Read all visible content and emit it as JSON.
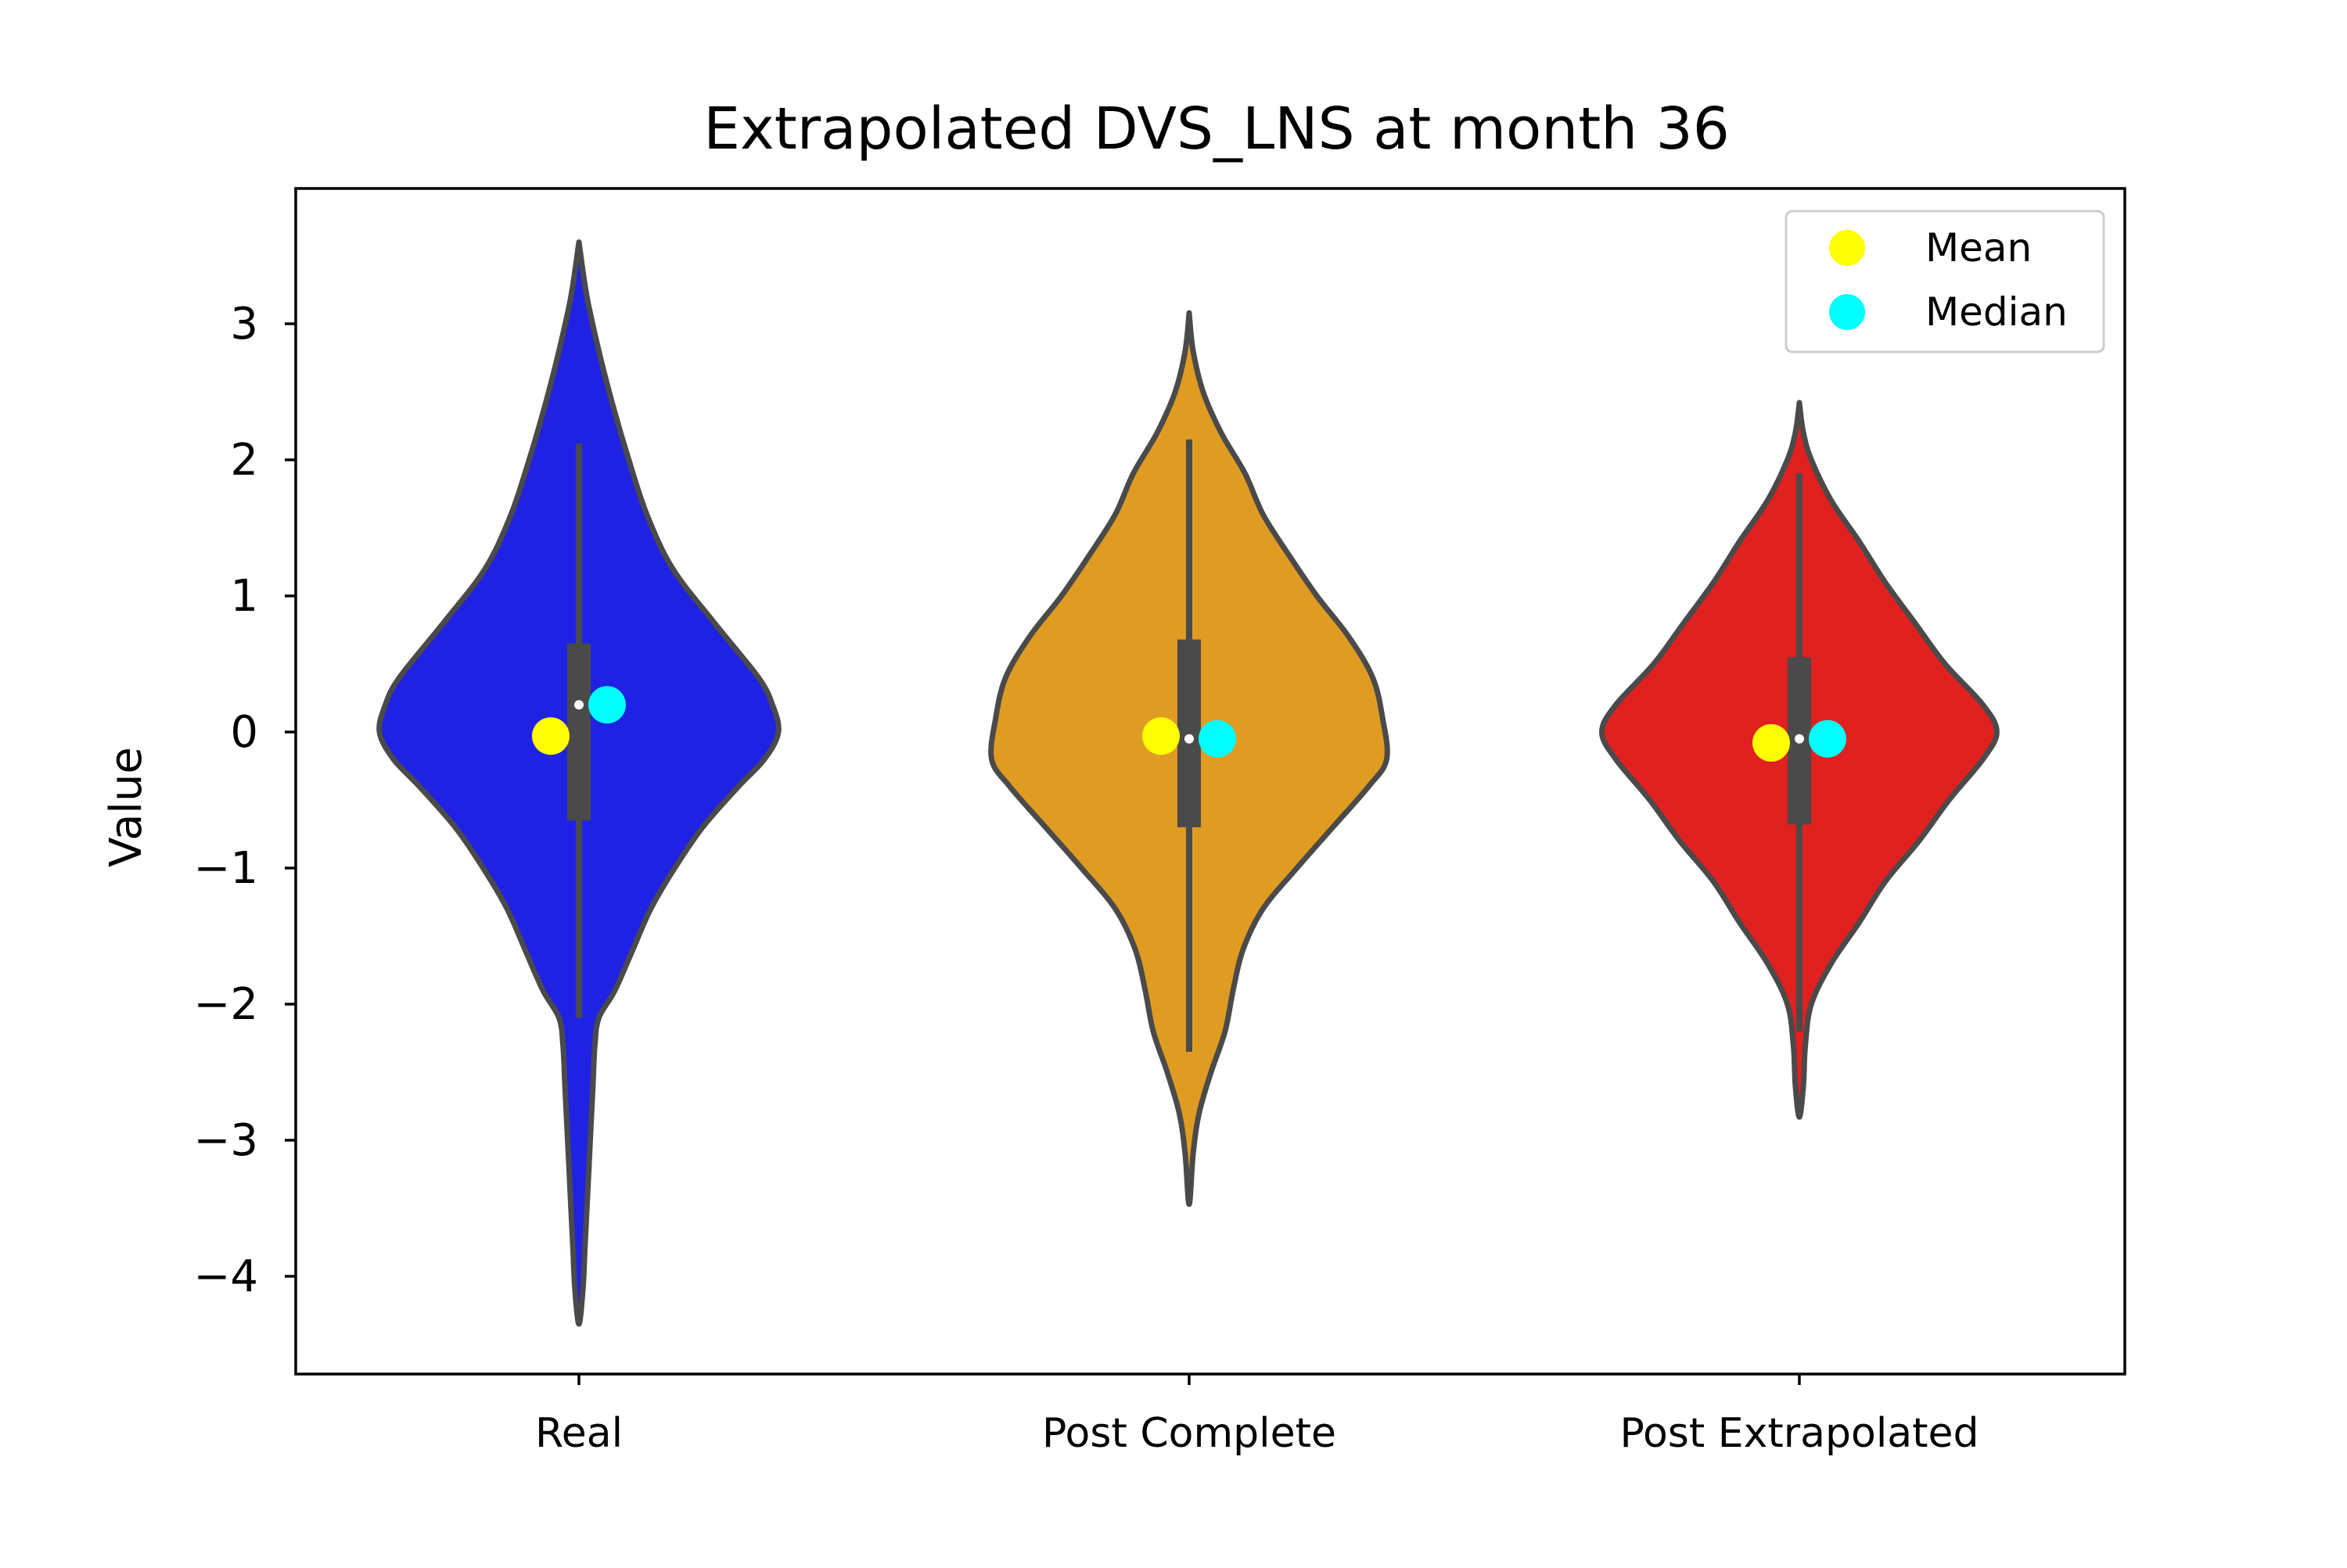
{
  "chart_data": {
    "type": "violin",
    "title": "Extrapolated DVS_LNS at month 36",
    "xlabel": "",
    "ylabel": "Value",
    "ylim": [
      -4.8,
      4.0
    ],
    "yticks": [
      {
        "value": 3,
        "label": "3"
      },
      {
        "value": 2,
        "label": "2"
      },
      {
        "value": 1,
        "label": "1"
      },
      {
        "value": 0,
        "label": "0"
      },
      {
        "value": -1,
        "label": "−1"
      },
      {
        "value": -2,
        "label": "−2"
      },
      {
        "value": -3,
        "label": "−3"
      },
      {
        "value": -4,
        "label": "−4"
      }
    ],
    "grid": false,
    "legend": {
      "placement": "top-right",
      "entries": [
        {
          "label": "Mean",
          "color": "#ffff00"
        },
        {
          "label": "Median",
          "color": "#00ffff"
        }
      ]
    },
    "categories": [
      "Real",
      "Post Complete",
      "Post Extrapolated"
    ],
    "series": [
      {
        "category": "Real",
        "color": "#1f22e3",
        "mean": -0.03,
        "median": 0.2,
        "box": {
          "q1": -0.65,
          "q3": 0.65,
          "whisker_low": -2.1,
          "whisker_high": 2.12
        },
        "profile": [
          [
            3.6,
            0.0
          ],
          [
            3.2,
            0.04
          ],
          [
            2.8,
            0.1
          ],
          [
            2.4,
            0.17
          ],
          [
            2.0,
            0.25
          ],
          [
            1.6,
            0.34
          ],
          [
            1.2,
            0.47
          ],
          [
            0.8,
            0.68
          ],
          [
            0.4,
            0.9
          ],
          [
            0.2,
            0.97
          ],
          [
            0.0,
            1.0
          ],
          [
            -0.2,
            0.93
          ],
          [
            -0.4,
            0.8
          ],
          [
            -0.7,
            0.62
          ],
          [
            -1.0,
            0.48
          ],
          [
            -1.3,
            0.36
          ],
          [
            -1.6,
            0.27
          ],
          [
            -1.9,
            0.18
          ],
          [
            -2.1,
            0.1
          ],
          [
            -2.3,
            0.08
          ],
          [
            -2.6,
            0.07
          ],
          [
            -2.9,
            0.06
          ],
          [
            -3.2,
            0.05
          ],
          [
            -3.5,
            0.04
          ],
          [
            -3.8,
            0.03
          ],
          [
            -4.1,
            0.02
          ],
          [
            -4.35,
            0.0
          ]
        ]
      },
      {
        "category": "Post Complete",
        "color": "#e09c22",
        "mean": -0.03,
        "median": -0.05,
        "box": {
          "q1": -0.7,
          "q3": 0.68,
          "whisker_low": -2.35,
          "whisker_high": 2.15
        },
        "profile": [
          [
            3.08,
            0.0
          ],
          [
            2.8,
            0.02
          ],
          [
            2.5,
            0.07
          ],
          [
            2.2,
            0.16
          ],
          [
            1.9,
            0.28
          ],
          [
            1.6,
            0.37
          ],
          [
            1.3,
            0.5
          ],
          [
            1.0,
            0.64
          ],
          [
            0.7,
            0.8
          ],
          [
            0.4,
            0.92
          ],
          [
            0.1,
            0.97
          ],
          [
            -0.2,
            0.99
          ],
          [
            -0.4,
            0.9
          ],
          [
            -0.7,
            0.72
          ],
          [
            -1.0,
            0.54
          ],
          [
            -1.3,
            0.37
          ],
          [
            -1.6,
            0.27
          ],
          [
            -1.9,
            0.22
          ],
          [
            -2.2,
            0.18
          ],
          [
            -2.5,
            0.11
          ],
          [
            -2.8,
            0.05
          ],
          [
            -3.1,
            0.02
          ],
          [
            -3.47,
            0.0
          ]
        ]
      },
      {
        "category": "Post Extrapolated",
        "color": "#e12020",
        "mean": -0.08,
        "median": -0.05,
        "box": {
          "q1": -0.68,
          "q3": 0.55,
          "whisker_low": -2.2,
          "whisker_high": 1.9
        },
        "profile": [
          [
            2.42,
            0.0
          ],
          [
            2.2,
            0.02
          ],
          [
            2.0,
            0.06
          ],
          [
            1.7,
            0.16
          ],
          [
            1.4,
            0.3
          ],
          [
            1.1,
            0.43
          ],
          [
            0.8,
            0.58
          ],
          [
            0.5,
            0.73
          ],
          [
            0.2,
            0.92
          ],
          [
            0.0,
            0.99
          ],
          [
            -0.2,
            0.92
          ],
          [
            -0.5,
            0.75
          ],
          [
            -0.8,
            0.6
          ],
          [
            -1.1,
            0.43
          ],
          [
            -1.4,
            0.3
          ],
          [
            -1.7,
            0.16
          ],
          [
            -2.0,
            0.06
          ],
          [
            -2.3,
            0.03
          ],
          [
            -2.6,
            0.02
          ],
          [
            -2.83,
            0.0
          ]
        ]
      }
    ]
  }
}
